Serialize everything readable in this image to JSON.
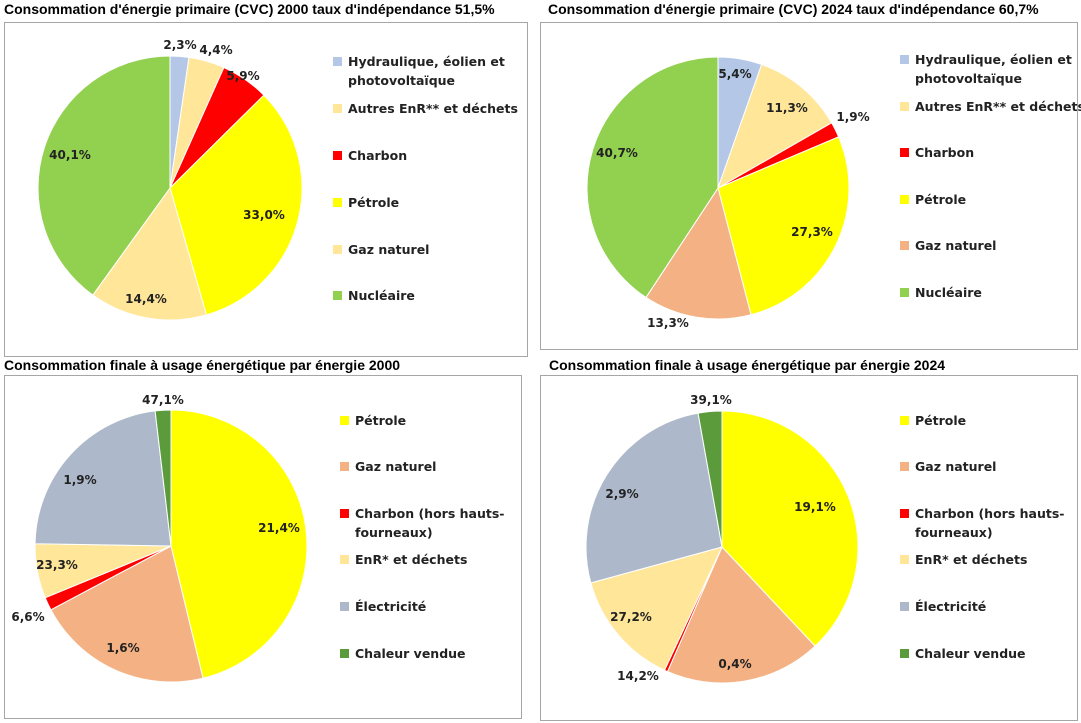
{
  "chart_data": [
    {
      "type": "pie",
      "title": "Consommation d'énergie primaire (CVC) 2000 taux d'indépendance 51,5%",
      "categories": [
        "Hydraulique, éolien et photovoltaïque",
        "Autres EnR** et déchets",
        "Charbon",
        "Pétrole",
        "Gaz naturel",
        "Nucléaire"
      ],
      "values": [
        2.3,
        4.4,
        5.9,
        33.0,
        14.4,
        40.1
      ],
      "labels": [
        "2,3%",
        "4,4%",
        "5,9%",
        "33,0%",
        "14,4%",
        "40,1%"
      ],
      "colors": [
        "#b4c7e7",
        "#ffe699",
        "#ff0000",
        "#ffff00",
        "#ffe699",
        "#92d050"
      ],
      "legend": "right"
    },
    {
      "type": "pie",
      "title": "Consommation d'énergie primaire (CVC) 2024 taux d'indépendance 60,7%",
      "categories": [
        "Hydraulique, éolien et photovoltaïque",
        "Autres EnR** et déchets",
        "Charbon",
        "Pétrole",
        "Gaz naturel",
        "Nucléaire"
      ],
      "values": [
        5.4,
        11.3,
        1.9,
        27.3,
        13.3,
        40.7
      ],
      "labels": [
        "5,4%",
        "11,3%",
        "1,9%",
        "27,3%",
        "13,3%",
        "40,7%"
      ],
      "colors": [
        "#b4c7e7",
        "#ffe699",
        "#ff0000",
        "#ffff00",
        "#f4b183",
        "#92d050"
      ],
      "legend": "right"
    },
    {
      "type": "pie",
      "title": "Consommation finale à usage énergétique par énergie 2000",
      "categories": [
        "Pétrole",
        "Gaz naturel",
        "Charbon (hors hauts-fourneaux)",
        "EnR* et déchets",
        "Électricité",
        "Chaleur vendue"
      ],
      "values": [
        47.1,
        21.4,
        1.6,
        6.6,
        23.3,
        1.9
      ],
      "labels": [
        "47,1%",
        "21,4%",
        "1,6%",
        "6,6%",
        "23,3%",
        "1,9%"
      ],
      "colors": [
        "#ffff00",
        "#f4b183",
        "#ff0000",
        "#ffe699",
        "#adb9ca",
        "#5b9b3c"
      ],
      "legend": "right"
    },
    {
      "type": "pie",
      "title": "Consommation finale à usage énergétique par énergie 2024",
      "categories": [
        "Pétrole",
        "Gaz naturel",
        "Charbon (hors hauts-fourneaux)",
        "EnR* et déchets",
        "Électricité",
        "Chaleur vendue"
      ],
      "values": [
        39.1,
        19.1,
        0.4,
        14.2,
        27.2,
        2.9
      ],
      "labels": [
        "39,1%",
        "19,1%",
        "0,4%",
        "14,2%",
        "27,2%",
        "2,9%"
      ],
      "colors": [
        "#ffff00",
        "#f4b183",
        "#ff0000",
        "#ffe699",
        "#adb9ca",
        "#5b9b3c"
      ],
      "legend": "right"
    }
  ]
}
